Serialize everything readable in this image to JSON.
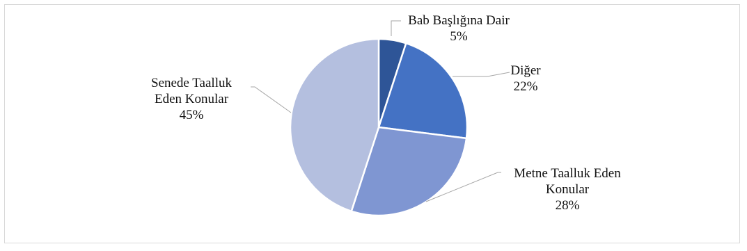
{
  "chart_data": {
    "type": "pie",
    "title": "",
    "slices": [
      {
        "label_lines": [
          "Bab Başlığına Dair"
        ],
        "percent_label": "5%",
        "value": 5,
        "color": "#2e5597"
      },
      {
        "label_lines": [
          "Diğer"
        ],
        "percent_label": "22%",
        "value": 22,
        "color": "#4472c4"
      },
      {
        "label_lines": [
          "Metne Taalluk Eden",
          "Konular"
        ],
        "percent_label": "28%",
        "value": 28,
        "color": "#7f96d2"
      },
      {
        "label_lines": [
          "Senede Taalluk",
          "Eden Konular"
        ],
        "percent_label": "45%",
        "value": 45,
        "color": "#b4bfdf"
      }
    ],
    "legend": "none",
    "data_labels": "outside-with-leader-lines",
    "leader_color": "#a6a6a6"
  }
}
